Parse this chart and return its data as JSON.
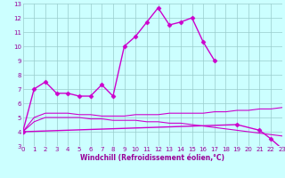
{
  "xlabel": "Windchill (Refroidissement éolien,°C)",
  "series": [
    {
      "x": [
        0,
        1,
        2,
        3,
        4,
        5,
        6,
        7,
        8,
        9,
        10,
        11,
        12,
        13,
        14,
        15,
        16,
        17
      ],
      "y": [
        4.0,
        7.0,
        7.5,
        6.7,
        6.7,
        6.5,
        6.5,
        7.3,
        6.5,
        10.0,
        10.7,
        11.7,
        12.7,
        11.5,
        11.7,
        12.0,
        10.3,
        9.0
      ],
      "color": "#cc00cc",
      "marker": "D",
      "markersize": 2.5,
      "linewidth": 1.0
    },
    {
      "x": [
        0,
        19,
        21,
        22,
        23
      ],
      "y": [
        4.0,
        4.5,
        4.1,
        3.5,
        2.8
      ],
      "color": "#cc00cc",
      "marker": "D",
      "markersize": 2.5,
      "linewidth": 1.0
    },
    {
      "x": [
        0,
        1,
        2,
        3,
        4,
        5,
        6,
        7,
        8,
        9,
        10,
        11,
        12,
        13,
        14,
        15,
        16,
        17,
        18,
        19,
        20,
        21,
        22,
        23
      ],
      "y": [
        4.0,
        5.0,
        5.3,
        5.3,
        5.3,
        5.2,
        5.2,
        5.1,
        5.1,
        5.1,
        5.2,
        5.2,
        5.2,
        5.3,
        5.3,
        5.3,
        5.3,
        5.4,
        5.4,
        5.5,
        5.5,
        5.6,
        5.6,
        5.7
      ],
      "color": "#cc00cc",
      "marker": null,
      "markersize": 0,
      "linewidth": 0.8
    },
    {
      "x": [
        0,
        1,
        2,
        3,
        4,
        5,
        6,
        7,
        8,
        9,
        10,
        11,
        12,
        13,
        14,
        15,
        16,
        17,
        18,
        19,
        20,
        21,
        22,
        23
      ],
      "y": [
        4.0,
        4.7,
        5.0,
        5.0,
        5.0,
        5.0,
        4.9,
        4.9,
        4.8,
        4.8,
        4.8,
        4.7,
        4.7,
        4.6,
        4.6,
        4.5,
        4.4,
        4.3,
        4.2,
        4.1,
        4.0,
        3.9,
        3.8,
        3.7
      ],
      "color": "#cc00cc",
      "marker": null,
      "markersize": 0,
      "linewidth": 0.8
    }
  ],
  "xlim": [
    0,
    23
  ],
  "ylim": [
    3,
    13
  ],
  "yticks": [
    3,
    4,
    5,
    6,
    7,
    8,
    9,
    10,
    11,
    12,
    13
  ],
  "xticks": [
    0,
    1,
    2,
    3,
    4,
    5,
    6,
    7,
    8,
    9,
    10,
    11,
    12,
    13,
    14,
    15,
    16,
    17,
    18,
    19,
    20,
    21,
    22,
    23
  ],
  "bg_color": "#ccffff",
  "grid_color": "#99cccc",
  "font_color": "#990099",
  "tick_fontsize": 5,
  "xlabel_fontsize": 5.5
}
